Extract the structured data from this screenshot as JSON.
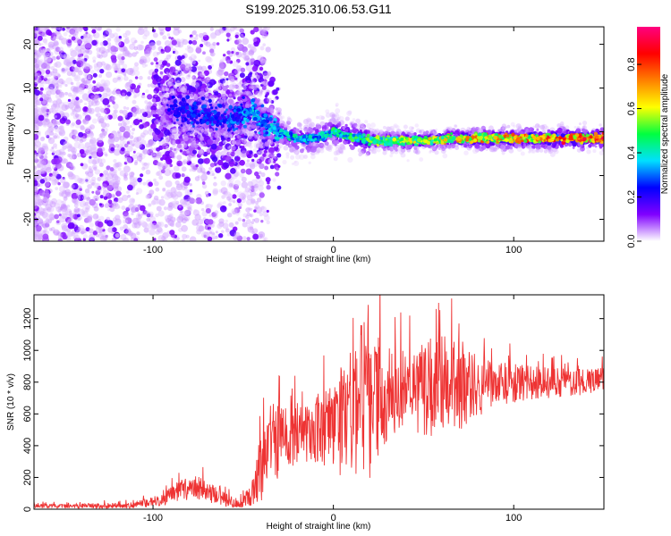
{
  "title": "S199.2025.310.06.53.G11",
  "chart_data": [
    {
      "type": "heatmap",
      "xlabel": "Height of straight line (km)",
      "ylabel": "Frequency (Hz)",
      "xlim": [
        -166,
        150
      ],
      "ylim": [
        -25,
        24
      ],
      "x_ticks": [
        -100,
        0,
        100
      ],
      "y_ticks": [
        -20,
        -10,
        0,
        10,
        20
      ],
      "colorbar": {
        "label": "Normalized spectral amplitude",
        "range": [
          0,
          0.97
        ],
        "ticks": [
          0.0,
          0.2,
          0.4,
          0.6,
          0.8
        ],
        "stops": [
          "#ffffff",
          "#8000ff",
          "#0000ff",
          "#00e0ff",
          "#00ff40",
          "#ffff00",
          "#ff8000",
          "#ff0000",
          "#ff0080"
        ]
      },
      "ridge": {
        "description": "main spectral ridge",
        "x": [
          -90,
          -75,
          -60,
          -50,
          -45,
          -40,
          -30,
          -20,
          -10,
          0,
          10,
          20,
          30,
          50,
          75,
          100,
          125,
          150
        ],
        "frequency": [
          5,
          4,
          3,
          4,
          5,
          2,
          0,
          -1.5,
          -1.5,
          0,
          -1,
          -2,
          -2,
          -2,
          -1.5,
          -1.5,
          -1.5,
          -1.5
        ],
        "peak_amplitude": [
          0.25,
          0.3,
          0.3,
          0.35,
          0.4,
          0.35,
          0.4,
          0.45,
          0.45,
          0.5,
          0.5,
          0.55,
          0.6,
          0.65,
          0.75,
          0.8,
          0.9,
          0.9
        ]
      }
    },
    {
      "type": "line",
      "xlabel": "Height of straight line (km)",
      "ylabel": "SNR (10 * v/v)",
      "xlim": [
        -166,
        150
      ],
      "ylim": [
        0,
        1350
      ],
      "x_ticks": [
        -100,
        0,
        100
      ],
      "y_ticks": [
        0,
        200,
        400,
        600,
        800,
        1000,
        1200
      ],
      "color": "#ee3333",
      "envelope": {
        "x": [
          -166,
          -140,
          -110,
          -95,
          -85,
          -75,
          -65,
          -55,
          -50,
          -45,
          -40,
          -35,
          -30,
          -25,
          -20,
          -15,
          -10,
          -5,
          0,
          5,
          10,
          15,
          20,
          25,
          30,
          40,
          50,
          60,
          70,
          80,
          90,
          100,
          110,
          120,
          130,
          140,
          150
        ],
        "mean": [
          20,
          20,
          25,
          60,
          120,
          140,
          80,
          40,
          50,
          100,
          250,
          380,
          420,
          460,
          470,
          480,
          500,
          520,
          520,
          560,
          600,
          650,
          680,
          700,
          720,
          760,
          760,
          760,
          770,
          780,
          780,
          790,
          800,
          800,
          800,
          800,
          810
        ],
        "amplitude": [
          15,
          15,
          20,
          40,
          70,
          80,
          60,
          30,
          40,
          80,
          250,
          200,
          250,
          200,
          200,
          200,
          220,
          250,
          300,
          350,
          400,
          550,
          500,
          400,
          300,
          250,
          300,
          350,
          300,
          200,
          150,
          130,
          110,
          100,
          90,
          80,
          80
        ]
      }
    }
  ]
}
